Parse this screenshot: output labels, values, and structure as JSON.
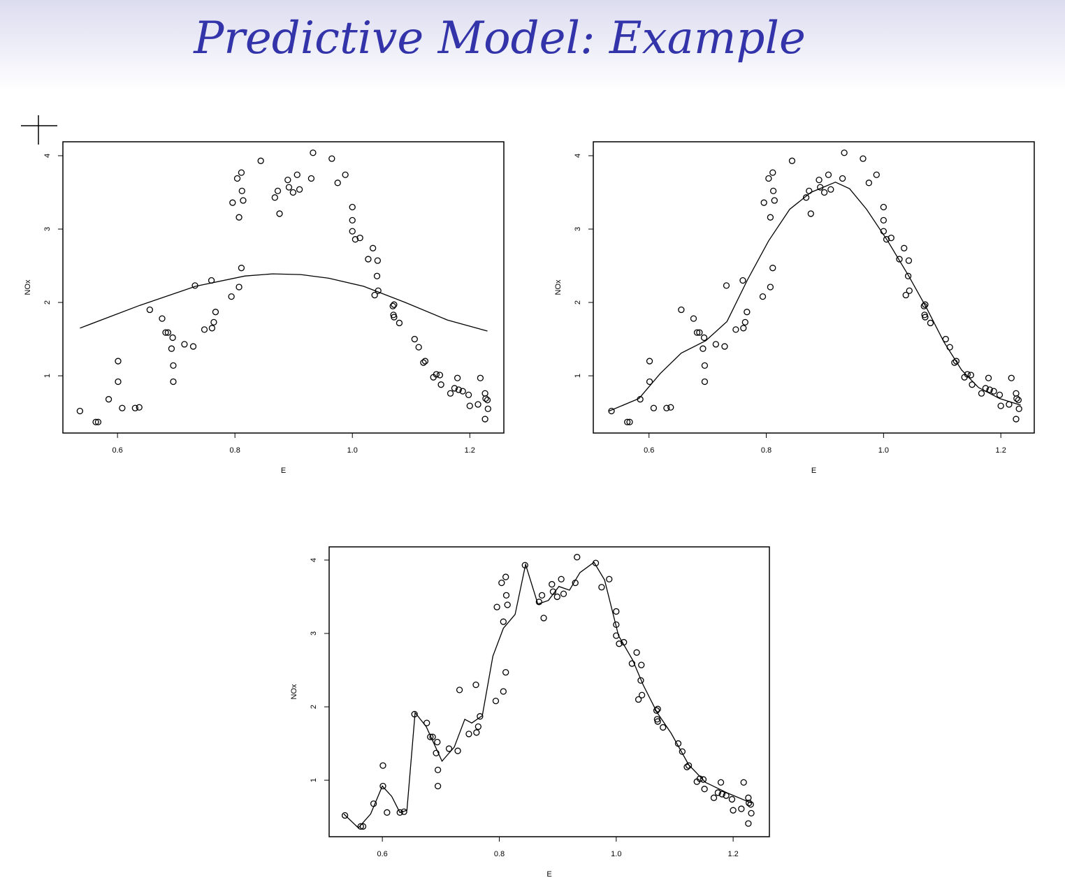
{
  "title": "Predictive Model: Example",
  "chart_data": [
    {
      "type": "scatter",
      "x_label": "E",
      "y_label": "NOx",
      "xlim": [
        0.507,
        1.258
      ],
      "ylim": [
        0.22,
        4.19
      ],
      "xticks": [
        0.6,
        0.8,
        {
          "value": 1,
          "label": "1.0"
        },
        1.2
      ],
      "yticks": [
        1,
        2,
        3,
        4
      ],
      "series": [
        {
          "type": "scatter",
          "color": "#000000",
          "x": [
            0.536,
            0.563,
            0.567,
            0.585,
            0.601,
            0.601,
            0.608,
            0.63,
            0.637,
            0.655,
            0.676,
            0.682,
            0.686,
            0.694,
            0.692,
            0.695,
            0.695,
            0.714,
            0.729,
            0.732,
            0.748,
            0.76,
            0.761,
            0.764,
            0.767,
            0.794,
            0.796,
            0.804,
            0.807,
            0.807,
            0.811,
            0.811,
            0.812,
            0.814,
            0.844,
            0.868,
            0.873,
            0.876,
            0.89,
            0.892,
            0.899,
            0.906,
            0.91,
            0.93,
            0.933,
            0.965,
            0.975,
            0.988,
            1.0,
            1.0,
            1.0,
            1.005,
            1.013,
            1.027,
            1.035,
            1.038,
            1.042,
            1.043,
            1.044,
            1.069,
            1.071,
            1.07,
            1.071,
            1.08,
            1.106,
            1.113,
            1.121,
            1.124,
            1.138,
            1.143,
            1.149,
            1.151,
            1.167,
            1.174,
            1.179,
            1.181,
            1.188,
            1.198,
            1.2,
            1.214,
            1.218,
            1.226,
            1.227,
            1.23,
            1.231,
            1.226
          ],
          "y": [
            0.52,
            0.37,
            0.37,
            0.68,
            1.2,
            0.92,
            0.56,
            0.56,
            0.57,
            1.9,
            1.78,
            1.59,
            1.59,
            1.52,
            1.37,
            1.14,
            0.92,
            1.43,
            1.4,
            2.23,
            1.63,
            2.3,
            1.65,
            1.73,
            1.87,
            2.08,
            3.36,
            3.69,
            3.16,
            2.21,
            3.77,
            2.47,
            3.52,
            3.39,
            3.93,
            3.43,
            3.52,
            3.21,
            3.67,
            3.57,
            3.5,
            3.74,
            3.54,
            3.69,
            4.04,
            3.96,
            3.63,
            3.74,
            3.3,
            3.12,
            2.97,
            2.86,
            2.88,
            2.59,
            2.74,
            2.1,
            2.36,
            2.57,
            2.16,
            1.95,
            1.97,
            1.83,
            1.8,
            1.72,
            1.5,
            1.39,
            1.18,
            1.2,
            0.98,
            1.02,
            1.01,
            0.88,
            0.76,
            0.83,
            0.97,
            0.81,
            0.79,
            0.74,
            0.59,
            0.61,
            0.97,
            0.76,
            0.69,
            0.67,
            0.55,
            0.41
          ]
        },
        {
          "type": "line",
          "color": "#000000",
          "x": [
            0.536,
            0.638,
            0.733,
            0.817,
            0.864,
            0.912,
            0.96,
            1.019,
            1.09,
            1.162,
            1.23
          ],
          "y": [
            1.65,
            1.96,
            2.22,
            2.36,
            2.39,
            2.38,
            2.33,
            2.22,
            2.0,
            1.76,
            1.61
          ]
        }
      ]
    },
    {
      "type": "scatter",
      "x_label": "E",
      "y_label": "NOx",
      "xlim": [
        0.505,
        1.257
      ],
      "ylim": [
        0.22,
        4.19
      ],
      "xticks": [
        0.6,
        0.8,
        {
          "value": 1,
          "label": "1.0"
        },
        1.2
      ],
      "yticks": [
        1,
        2,
        3,
        4
      ],
      "series": [
        {
          "type": "scatter",
          "color": "#000000",
          "x": [
            0.536,
            0.563,
            0.567,
            0.585,
            0.601,
            0.601,
            0.608,
            0.63,
            0.637,
            0.655,
            0.676,
            0.682,
            0.686,
            0.694,
            0.692,
            0.695,
            0.695,
            0.714,
            0.729,
            0.732,
            0.748,
            0.76,
            0.761,
            0.764,
            0.767,
            0.794,
            0.796,
            0.804,
            0.807,
            0.807,
            0.811,
            0.811,
            0.812,
            0.814,
            0.844,
            0.868,
            0.873,
            0.876,
            0.89,
            0.892,
            0.899,
            0.906,
            0.91,
            0.93,
            0.933,
            0.965,
            0.975,
            0.988,
            1.0,
            1.0,
            1.0,
            1.005,
            1.013,
            1.027,
            1.035,
            1.038,
            1.042,
            1.043,
            1.044,
            1.069,
            1.071,
            1.07,
            1.071,
            1.08,
            1.106,
            1.113,
            1.121,
            1.124,
            1.138,
            1.143,
            1.149,
            1.151,
            1.167,
            1.174,
            1.179,
            1.181,
            1.188,
            1.198,
            1.2,
            1.214,
            1.218,
            1.226,
            1.227,
            1.23,
            1.231,
            1.226
          ],
          "y": [
            0.52,
            0.37,
            0.37,
            0.68,
            1.2,
            0.92,
            0.56,
            0.56,
            0.57,
            1.9,
            1.78,
            1.59,
            1.59,
            1.52,
            1.37,
            1.14,
            0.92,
            1.43,
            1.4,
            2.23,
            1.63,
            2.3,
            1.65,
            1.73,
            1.87,
            2.08,
            3.36,
            3.69,
            3.16,
            2.21,
            3.77,
            2.47,
            3.52,
            3.39,
            3.93,
            3.43,
            3.52,
            3.21,
            3.67,
            3.57,
            3.5,
            3.74,
            3.54,
            3.69,
            4.04,
            3.96,
            3.63,
            3.74,
            3.3,
            3.12,
            2.97,
            2.86,
            2.88,
            2.59,
            2.74,
            2.1,
            2.36,
            2.57,
            2.16,
            1.95,
            1.97,
            1.83,
            1.8,
            1.72,
            1.5,
            1.39,
            1.18,
            1.2,
            0.98,
            1.02,
            1.01,
            0.88,
            0.76,
            0.83,
            0.97,
            0.81,
            0.79,
            0.74,
            0.59,
            0.61,
            0.97,
            0.76,
            0.69,
            0.67,
            0.55,
            0.41
          ]
        },
        {
          "type": "line",
          "color": "#000000",
          "x": [
            0.532,
            0.583,
            0.619,
            0.655,
            0.697,
            0.733,
            0.768,
            0.804,
            0.84,
            0.876,
            0.918,
            0.942,
            0.971,
            1.007,
            1.043,
            1.073,
            1.103,
            1.133,
            1.162,
            1.198,
            1.234
          ],
          "y": [
            0.52,
            0.69,
            1.03,
            1.31,
            1.48,
            1.74,
            2.31,
            2.84,
            3.27,
            3.5,
            3.64,
            3.55,
            3.27,
            2.84,
            2.36,
            1.93,
            1.46,
            1.08,
            0.84,
            0.69,
            0.6
          ]
        }
      ]
    },
    {
      "type": "scatter",
      "x_label": "E",
      "y_label": "NOx",
      "xlim": [
        0.509,
        1.262
      ],
      "ylim": [
        0.23,
        4.18
      ],
      "xticks": [
        0.6,
        0.8,
        {
          "value": 1,
          "label": "1.0"
        },
        1.2
      ],
      "yticks": [
        1,
        2,
        3,
        4
      ],
      "series": [
        {
          "type": "scatter",
          "color": "#000000",
          "x": [
            0.536,
            0.563,
            0.567,
            0.585,
            0.601,
            0.601,
            0.608,
            0.63,
            0.637,
            0.655,
            0.676,
            0.682,
            0.686,
            0.694,
            0.692,
            0.695,
            0.695,
            0.714,
            0.729,
            0.732,
            0.748,
            0.76,
            0.761,
            0.764,
            0.767,
            0.794,
            0.796,
            0.804,
            0.807,
            0.807,
            0.811,
            0.811,
            0.812,
            0.814,
            0.844,
            0.868,
            0.873,
            0.876,
            0.89,
            0.892,
            0.899,
            0.906,
            0.91,
            0.93,
            0.933,
            0.965,
            0.975,
            0.988,
            1.0,
            1.0,
            1.0,
            1.005,
            1.013,
            1.027,
            1.035,
            1.038,
            1.042,
            1.043,
            1.044,
            1.069,
            1.071,
            1.07,
            1.071,
            1.08,
            1.106,
            1.113,
            1.121,
            1.124,
            1.138,
            1.143,
            1.149,
            1.151,
            1.167,
            1.174,
            1.179,
            1.181,
            1.188,
            1.198,
            1.2,
            1.214,
            1.218,
            1.226,
            1.227,
            1.23,
            1.231,
            1.226
          ],
          "y": [
            0.52,
            0.37,
            0.37,
            0.68,
            1.2,
            0.92,
            0.56,
            0.56,
            0.57,
            1.9,
            1.78,
            1.59,
            1.59,
            1.52,
            1.37,
            1.14,
            0.92,
            1.43,
            1.4,
            2.23,
            1.63,
            2.3,
            1.65,
            1.73,
            1.87,
            2.08,
            3.36,
            3.69,
            3.16,
            2.21,
            3.77,
            2.47,
            3.52,
            3.39,
            3.93,
            3.43,
            3.52,
            3.21,
            3.67,
            3.57,
            3.5,
            3.74,
            3.54,
            3.69,
            4.04,
            3.96,
            3.63,
            3.74,
            3.3,
            3.12,
            2.97,
            2.86,
            2.88,
            2.59,
            2.74,
            2.1,
            2.36,
            2.57,
            2.16,
            1.95,
            1.97,
            1.83,
            1.8,
            1.72,
            1.5,
            1.39,
            1.18,
            1.2,
            0.98,
            1.02,
            1.01,
            0.88,
            0.76,
            0.83,
            0.97,
            0.81,
            0.79,
            0.74,
            0.59,
            0.61,
            0.97,
            0.76,
            0.69,
            0.67,
            0.55,
            0.41
          ]
        },
        {
          "type": "line",
          "color": "#000000",
          "x": [
            0.534,
            0.559,
            0.58,
            0.6,
            0.616,
            0.63,
            0.642,
            0.656,
            0.675,
            0.702,
            0.723,
            0.741,
            0.753,
            0.771,
            0.789,
            0.807,
            0.827,
            0.845,
            0.866,
            0.884,
            0.902,
            0.92,
            0.938,
            0.962,
            0.98,
            1.004,
            1.028,
            1.046,
            1.07,
            1.094,
            1.124,
            1.153,
            1.189,
            1.231
          ],
          "y": [
            0.54,
            0.35,
            0.54,
            0.92,
            0.78,
            0.56,
            0.59,
            1.92,
            1.73,
            1.26,
            1.45,
            1.83,
            1.78,
            1.88,
            2.69,
            3.07,
            3.26,
            3.94,
            3.4,
            3.45,
            3.64,
            3.59,
            3.83,
            3.97,
            3.73,
            2.97,
            2.64,
            2.3,
            1.92,
            1.64,
            1.21,
            0.97,
            0.83,
            0.69
          ]
        }
      ]
    }
  ]
}
